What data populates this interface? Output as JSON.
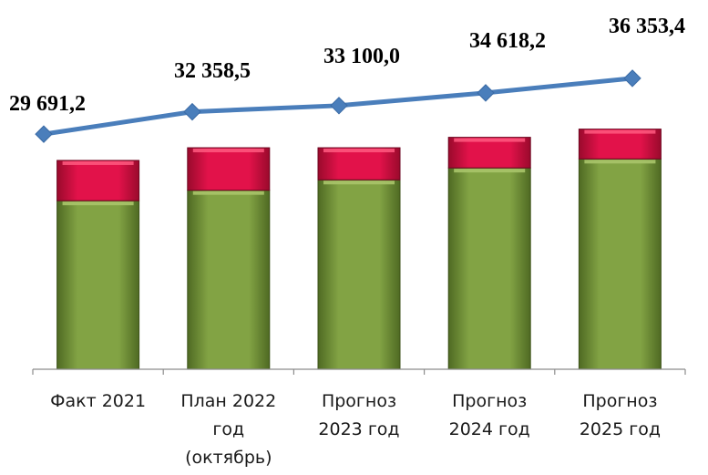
{
  "chart_data": {
    "type": "bar",
    "categories": [
      [
        "Факт 2021"
      ],
      [
        "План 2022",
        "год",
        "(октябрь)"
      ],
      [
        "Прогноз",
        "2023 год"
      ],
      [
        "Прогноз",
        "2024 год"
      ],
      [
        "Прогноз",
        "2025 год"
      ]
    ],
    "series": [
      {
        "type": "bar-stacked",
        "color": "#76923c",
        "values": [
          22600,
          24000,
          25400,
          27000,
          28200
        ]
      },
      {
        "type": "bar-stacked",
        "color": "#e0103c",
        "values": [
          5400,
          5700,
          4300,
          4100,
          4000
        ]
      },
      {
        "type": "line",
        "color": "#4a7ebb",
        "marker": "diamond",
        "values": [
          29691.2,
          32358.5,
          33100.0,
          34618.2,
          36353.4
        ],
        "labels": [
          "29 691,2",
          "32 358,5",
          "33 100,0",
          "34 618,2",
          "36 353,4"
        ]
      }
    ],
    "ylim": [
      0,
      40000
    ],
    "grid": false,
    "legend": "none"
  }
}
